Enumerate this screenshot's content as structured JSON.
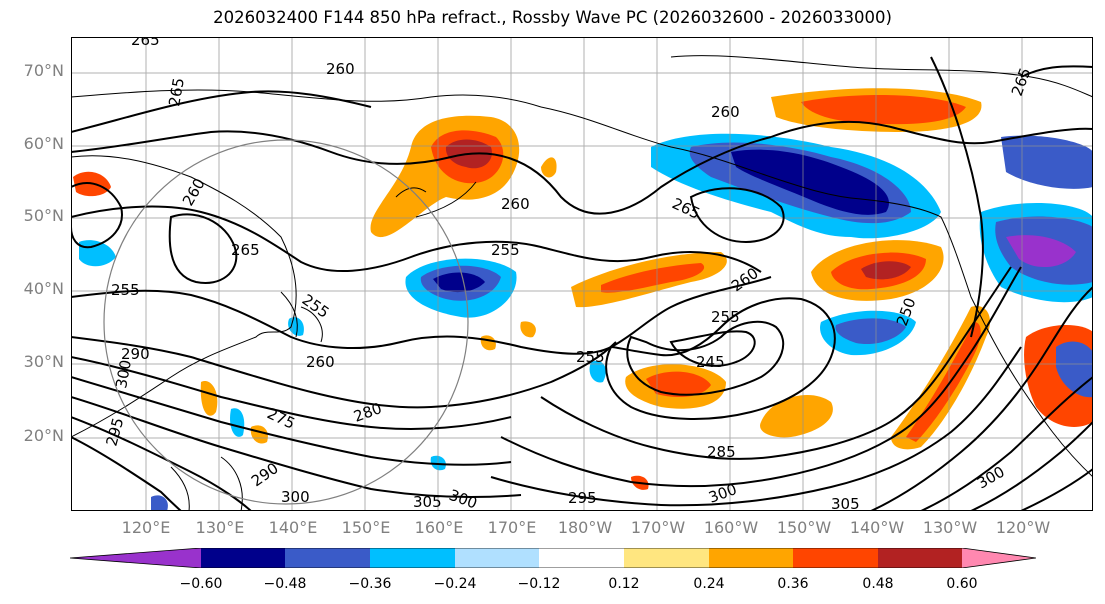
{
  "title": "2026032400 F144 850 hPa refract., Rossby Wave PC (2026032600 - 2026033000)",
  "lat_labels": [
    "70°N",
    "60°N",
    "50°N",
    "40°N",
    "30°N",
    "20°N"
  ],
  "lon_labels": [
    "120°E",
    "130°E",
    "140°E",
    "150°E",
    "160°E",
    "170°E",
    "180°W",
    "170°W",
    "160°W",
    "150°W",
    "140°W",
    "130°W",
    "120°W"
  ],
  "contour_labels": [
    "265",
    "265",
    "260",
    "260",
    "260",
    "265",
    "260",
    "265",
    "255",
    "255",
    "255",
    "260",
    "260",
    "255",
    "245",
    "250",
    "265",
    "255",
    "290",
    "300",
    "295",
    "275",
    "280",
    "290",
    "300",
    "305",
    "300",
    "295",
    "300",
    "285",
    "300",
    "305"
  ],
  "colorbar": {
    "colors": [
      "#9932cc",
      "#00008b",
      "#3a5bc8",
      "#00bfff",
      "#b0e0ff",
      "#ffffff",
      "#ffe680",
      "#ffa500",
      "#ff4500",
      "#b22222",
      "#ff88b0"
    ],
    "ticks": [
      "−0.60",
      "−0.48",
      "−0.36",
      "−0.24",
      "−0.12",
      "0.12",
      "0.24",
      "0.36",
      "0.48",
      "0.60"
    ]
  }
}
